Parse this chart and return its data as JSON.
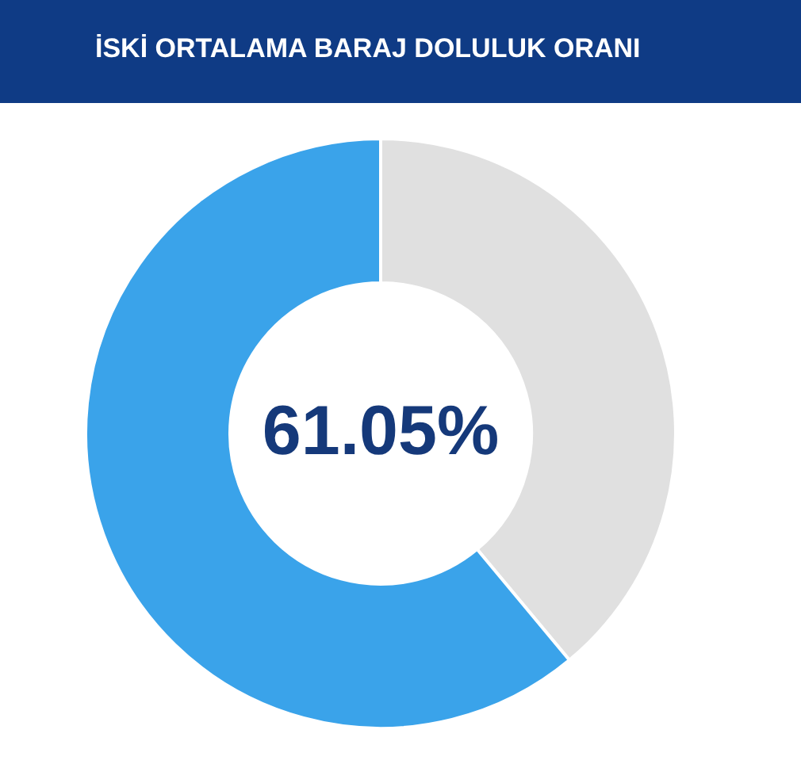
{
  "chart_data": {
    "type": "donut",
    "title": "İSKİ ORTALAMA BARAJ DOLULUK ORANI",
    "categories": [
      null,
      null
    ],
    "values": [
      38.95,
      61.05
    ],
    "colors": [
      "#e0e0e0",
      "#3aa3ea"
    ],
    "annotations": [
      "61.05%"
    ]
  }
}
